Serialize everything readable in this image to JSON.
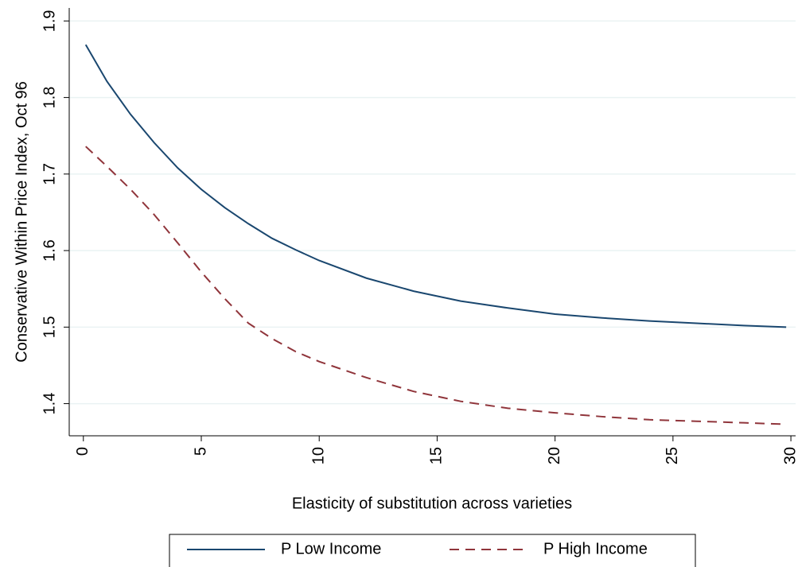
{
  "chart_data": {
    "type": "line",
    "xlabel": "Elasticity of substitution across varieties",
    "ylabel": "Conservative Within Price Index, Oct 96",
    "x": [
      0.1,
      1,
      2,
      3,
      4,
      5,
      6,
      7,
      8,
      9,
      10,
      12,
      14,
      16,
      18,
      20,
      22,
      24,
      26,
      28,
      29.8
    ],
    "series": [
      {
        "name": "P Low Income",
        "color": "#1a476f",
        "dash": "solid",
        "values": [
          1.869,
          1.821,
          1.778,
          1.741,
          1.708,
          1.68,
          1.656,
          1.635,
          1.616,
          1.601,
          1.587,
          1.564,
          1.547,
          1.534,
          1.525,
          1.517,
          1.512,
          1.508,
          1.505,
          1.502,
          1.5
        ]
      },
      {
        "name": "P High Income",
        "color": "#90353b",
        "dash": "dashed",
        "values": [
          1.736,
          1.71,
          1.68,
          1.647,
          1.61,
          1.572,
          1.537,
          1.505,
          1.485,
          1.468,
          1.455,
          1.434,
          1.416,
          1.403,
          1.394,
          1.388,
          1.383,
          1.379,
          1.377,
          1.375,
          1.373
        ]
      }
    ],
    "xlim": [
      -0.6,
      30.2
    ],
    "xticks": [
      0,
      5,
      10,
      15,
      20,
      25,
      30
    ],
    "ylim": [
      1.358,
      1.917
    ],
    "yticks": [
      1.4,
      1.5,
      1.6,
      1.7,
      1.8,
      1.9
    ],
    "grid": true,
    "legend": "bottom"
  }
}
